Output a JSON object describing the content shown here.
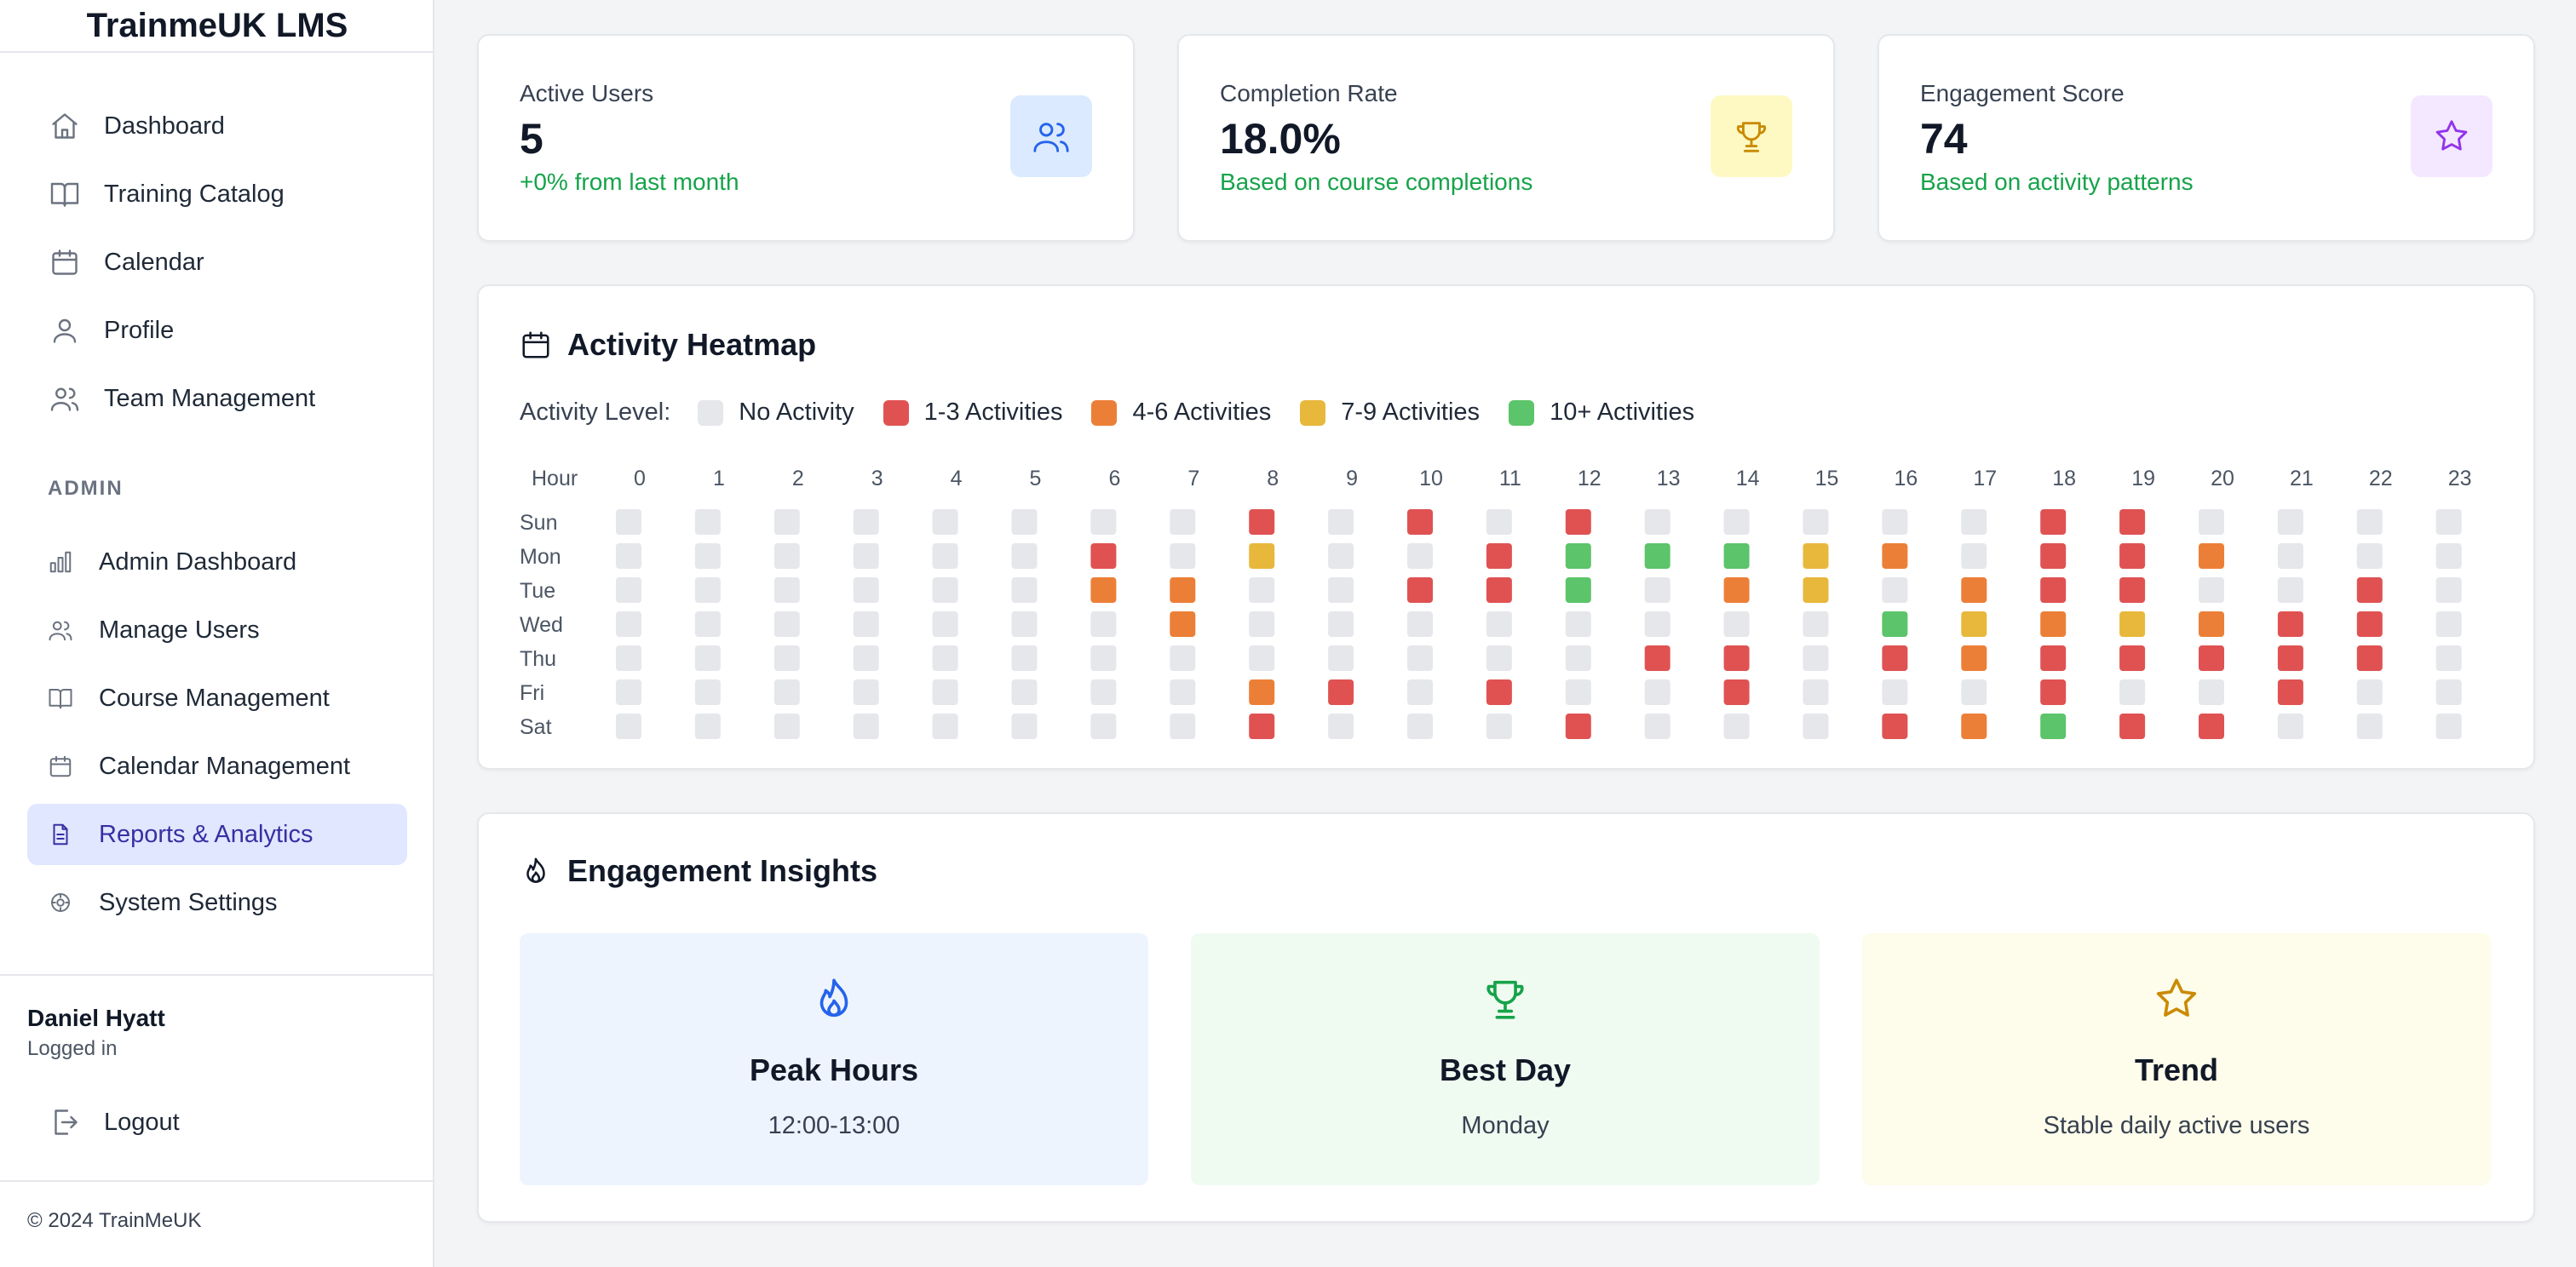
{
  "app": {
    "title": "TrainmeUK LMS"
  },
  "sidebar": {
    "main_items": [
      {
        "label": "Dashboard",
        "icon": "home-icon"
      },
      {
        "label": "Training Catalog",
        "icon": "book-icon"
      },
      {
        "label": "Calendar",
        "icon": "calendar-icon"
      },
      {
        "label": "Profile",
        "icon": "user-icon"
      },
      {
        "label": "Team Management",
        "icon": "users-icon"
      }
    ],
    "admin_label": "ADMIN",
    "admin_items": [
      {
        "label": "Admin Dashboard",
        "icon": "bar-chart-icon"
      },
      {
        "label": "Manage Users",
        "icon": "users-icon"
      },
      {
        "label": "Course Management",
        "icon": "book-icon"
      },
      {
        "label": "Calendar Management",
        "icon": "calendar-icon"
      },
      {
        "label": "Reports & Analytics",
        "icon": "file-text-icon",
        "active": true
      },
      {
        "label": "System Settings",
        "icon": "settings-icon"
      }
    ],
    "user": {
      "name": "Daniel Hyatt",
      "status": "Logged in"
    },
    "logout_label": "Logout",
    "copyright": "© 2024 TrainMeUK"
  },
  "stats": [
    {
      "label": "Active Users",
      "value": "5",
      "sub": "+0% from last month",
      "icon": "users-icon",
      "icon_bg": "#dbeafe",
      "icon_color": "#2563eb"
    },
    {
      "label": "Completion Rate",
      "value": "18.0%",
      "sub": "Based on course completions",
      "icon": "trophy-icon",
      "icon_bg": "#fef9c3",
      "icon_color": "#ca8a04"
    },
    {
      "label": "Engagement Score",
      "value": "74",
      "sub": "Based on activity patterns",
      "icon": "star-icon",
      "icon_bg": "#f3e8ff",
      "icon_color": "#9333ea"
    }
  ],
  "heatmap": {
    "title": "Activity Heatmap",
    "legend_label": "Activity Level:",
    "legend": [
      {
        "label": "No Activity",
        "color": "#e5e7eb"
      },
      {
        "label": "1-3 Activities",
        "color": "#e05252"
      },
      {
        "label": "4-6 Activities",
        "color": "#ec7f37"
      },
      {
        "label": "7-9 Activities",
        "color": "#e8b83c"
      },
      {
        "label": "10+ Activities",
        "color": "#5cc46a"
      }
    ],
    "hour_header": "Hour",
    "hours": [
      "0",
      "1",
      "2",
      "3",
      "4",
      "5",
      "6",
      "7",
      "8",
      "9",
      "10",
      "11",
      "12",
      "13",
      "14",
      "15",
      "16",
      "17",
      "18",
      "19",
      "20",
      "21",
      "22",
      "23"
    ],
    "days": [
      "Sun",
      "Mon",
      "Tue",
      "Wed",
      "Thu",
      "Fri",
      "Sat"
    ],
    "levels": [
      [
        0,
        0,
        0,
        0,
        0,
        0,
        0,
        0,
        1,
        0,
        1,
        0,
        1,
        0,
        0,
        0,
        0,
        0,
        1,
        1,
        0,
        0,
        0,
        0
      ],
      [
        0,
        0,
        0,
        0,
        0,
        0,
        1,
        0,
        3,
        0,
        0,
        1,
        4,
        4,
        4,
        3,
        2,
        0,
        1,
        1,
        2,
        0,
        0,
        0
      ],
      [
        0,
        0,
        0,
        0,
        0,
        0,
        2,
        2,
        0,
        0,
        1,
        1,
        4,
        0,
        2,
        3,
        0,
        2,
        1,
        1,
        0,
        0,
        1,
        0
      ],
      [
        0,
        0,
        0,
        0,
        0,
        0,
        0,
        2,
        0,
        0,
        0,
        0,
        0,
        0,
        0,
        0,
        4,
        3,
        2,
        3,
        2,
        1,
        1,
        0
      ],
      [
        0,
        0,
        0,
        0,
        0,
        0,
        0,
        0,
        0,
        0,
        0,
        0,
        0,
        1,
        1,
        0,
        1,
        2,
        1,
        1,
        1,
        1,
        1,
        0
      ],
      [
        0,
        0,
        0,
        0,
        0,
        0,
        0,
        0,
        2,
        1,
        0,
        1,
        0,
        0,
        1,
        0,
        0,
        0,
        1,
        0,
        0,
        1,
        0,
        0
      ],
      [
        0,
        0,
        0,
        0,
        0,
        0,
        0,
        0,
        1,
        0,
        0,
        0,
        1,
        0,
        0,
        0,
        1,
        2,
        4,
        1,
        1,
        0,
        0,
        0
      ]
    ]
  },
  "insights": {
    "title": "Engagement Insights",
    "cards": [
      {
        "title": "Peak Hours",
        "value": "12:00-13:00",
        "icon": "flame-icon",
        "bg": "#eef4fe",
        "icon_color": "#2563eb"
      },
      {
        "title": "Best Day",
        "value": "Monday",
        "icon": "trophy-icon",
        "bg": "#effbf1",
        "icon_color": "#16a34a"
      },
      {
        "title": "Trend",
        "value": "Stable daily active users",
        "icon": "star-icon",
        "bg": "#fefcea",
        "icon_color": "#ca8a04"
      }
    ]
  }
}
